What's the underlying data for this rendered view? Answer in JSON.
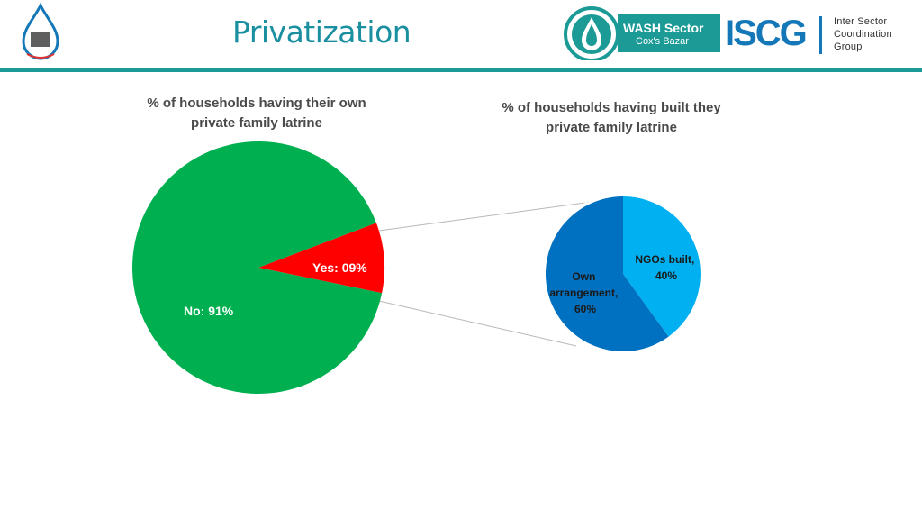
{
  "header": {
    "title": "Privatization",
    "wash_line1": "WASH Sector",
    "wash_line2": "Cox's Bazar",
    "iscg": "ISCG",
    "iscg_sub1": "Inter Sector",
    "iscg_sub2": "Coordination",
    "iscg_sub3": "Group",
    "accent": "#1b9a96"
  },
  "chart_data": [
    {
      "type": "pie",
      "title": "% of households having their own private family latrine",
      "slices": [
        {
          "label": "Yes: 09%",
          "value": 9,
          "color": "#ff0000"
        },
        {
          "label": "No: 91%",
          "value": 91,
          "color": "#00b050"
        }
      ]
    },
    {
      "type": "pie",
      "title": "% of households having built they private family latrine",
      "slices": [
        {
          "label": "NGOs built, 40%",
          "value": 40,
          "color": "#00b0f0"
        },
        {
          "label": "Own arrangement, 60%",
          "value": 60,
          "color": "#0070c0"
        }
      ]
    }
  ]
}
